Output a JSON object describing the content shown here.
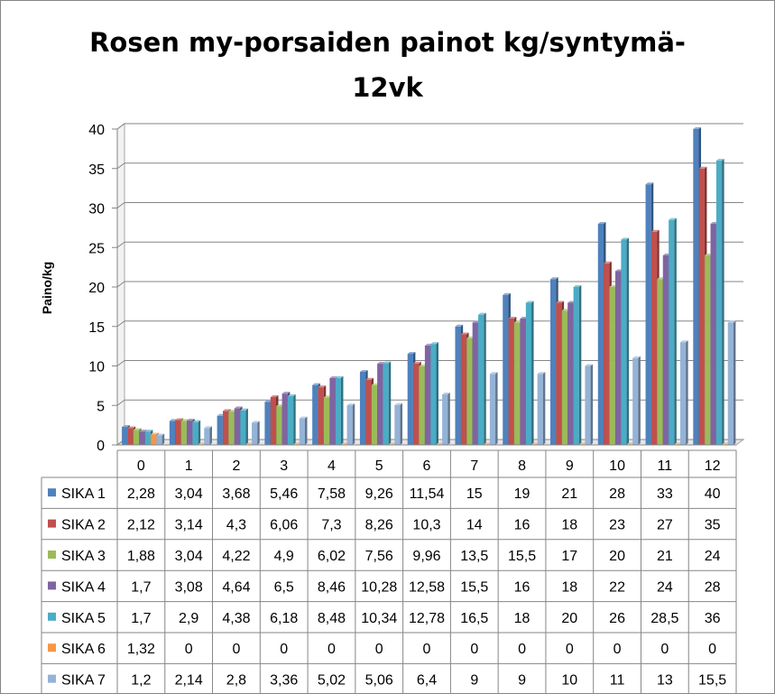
{
  "chart_data": {
    "type": "bar",
    "title_lines": [
      "Rosen my-porsaiden painot kg/syntymä-",
      "12vk"
    ],
    "ylabel": "Paino/kg",
    "xlabel": "",
    "ylim": [
      0,
      40
    ],
    "y_ticks": [
      0,
      5,
      10,
      15,
      20,
      25,
      30,
      35,
      40
    ],
    "categories": [
      "0",
      "1",
      "2",
      "3",
      "4",
      "5",
      "6",
      "7",
      "8",
      "9",
      "10",
      "11",
      "12"
    ],
    "legend_placement": "data-table",
    "grid": true,
    "series": [
      {
        "name": "SIKA 1",
        "color": "#4F81BD",
        "values": [
          2.28,
          3.04,
          3.68,
          5.46,
          7.58,
          9.26,
          11.54,
          15,
          19,
          21,
          28,
          33,
          40
        ],
        "labels": [
          "2,28",
          "3,04",
          "3,68",
          "5,46",
          "7,58",
          "9,26",
          "11,54",
          "15",
          "19",
          "21",
          "28",
          "33",
          "40"
        ]
      },
      {
        "name": "SIKA 2",
        "color": "#C0504D",
        "values": [
          2.12,
          3.14,
          4.3,
          6.06,
          7.3,
          8.26,
          10.3,
          14,
          16,
          18,
          23,
          27,
          35
        ],
        "labels": [
          "2,12",
          "3,14",
          "4,3",
          "6,06",
          "7,3",
          "8,26",
          "10,3",
          "14",
          "16",
          "18",
          "23",
          "27",
          "35"
        ]
      },
      {
        "name": "SIKA 3",
        "color": "#9BBB59",
        "values": [
          1.88,
          3.04,
          4.22,
          4.9,
          6.02,
          7.56,
          9.96,
          13.5,
          15.5,
          17,
          20,
          21,
          24
        ],
        "labels": [
          "1,88",
          "3,04",
          "4,22",
          "4,9",
          "6,02",
          "7,56",
          "9,96",
          "13,5",
          "15,5",
          "17",
          "20",
          "21",
          "24"
        ]
      },
      {
        "name": "SIKA 4",
        "color": "#8064A2",
        "values": [
          1.7,
          3.08,
          4.64,
          6.5,
          8.46,
          10.28,
          12.58,
          15.5,
          16,
          18,
          22,
          24,
          28
        ],
        "labels": [
          "1,7",
          "3,08",
          "4,64",
          "6,5",
          "8,46",
          "10,28",
          "12,58",
          "15,5",
          "16",
          "18",
          "22",
          "24",
          "28"
        ]
      },
      {
        "name": "SIKA 5",
        "color": "#4BACC6",
        "values": [
          1.7,
          2.9,
          4.38,
          6.18,
          8.48,
          10.34,
          12.78,
          16.5,
          18,
          20,
          26,
          28.5,
          36
        ],
        "labels": [
          "1,7",
          "2,9",
          "4,38",
          "6,18",
          "8,48",
          "10,34",
          "12,78",
          "16,5",
          "18",
          "20",
          "26",
          "28,5",
          "36"
        ]
      },
      {
        "name": "SIKA 6",
        "color": "#F79646",
        "values": [
          1.32,
          0,
          0,
          0,
          0,
          0,
          0,
          0,
          0,
          0,
          0,
          0,
          0
        ],
        "labels": [
          "1,32",
          "0",
          "0",
          "0",
          "0",
          "0",
          "0",
          "0",
          "0",
          "0",
          "0",
          "0",
          "0"
        ]
      },
      {
        "name": "SIKA 7",
        "color": "#95B3D7",
        "values": [
          1.2,
          2.14,
          2.8,
          3.36,
          5.02,
          5.06,
          6.4,
          9,
          9,
          10,
          11,
          13,
          15.5
        ],
        "labels": [
          "1,2",
          "2,14",
          "2,8",
          "3,36",
          "5,02",
          "5,06",
          "6,4",
          "9",
          "9",
          "10",
          "11",
          "13",
          "15,5"
        ]
      }
    ]
  }
}
